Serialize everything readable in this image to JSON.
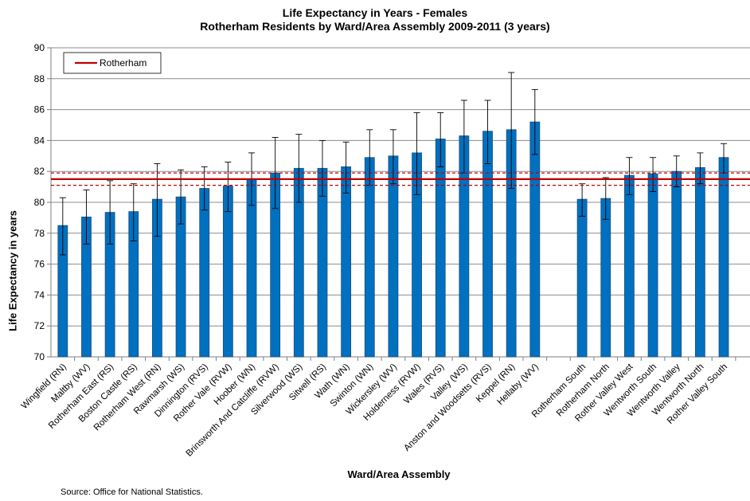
{
  "chart_data": {
    "type": "bar",
    "title": "Life Expectancy in Years - Females",
    "subtitle": "Rotherham Residents by Ward/Area Assembly 2009-2011 (3 years)",
    "xlabel": "Ward/Area Assembly",
    "ylabel": "Life Expectancy in years",
    "ylim": [
      70,
      90
    ],
    "yticks": [
      70,
      72,
      74,
      76,
      78,
      80,
      82,
      84,
      86,
      88,
      90
    ],
    "grid": true,
    "legend_position": "top-left",
    "bar_color": "#0070c0",
    "reference_color": "#c00000",
    "categories": [
      "Wingfield (RN)",
      "Maltby (WV)",
      "Rotherham East (RS)",
      "Boston Castle (RS)",
      "Rotherham West (RN)",
      "Rawmarsh (WS)",
      "Dinnington (RVS)",
      "Rother Vale (RVW)",
      "Hoober (WN)",
      "Brinsworth And Catcliffe (RVW)",
      "Silverwood (WS)",
      "Sitwell (RS)",
      "Wath (WN)",
      "Swinton (WN)",
      "Wickersley (WV)",
      "Holderness (RVW)",
      "Wales (RVS)",
      "Valley (WS)",
      "Anston and Woodsetts (RVS)",
      "Keppel (RN)",
      "Hellaby (WV)",
      "",
      "Rotherham South",
      "Rotherham North",
      "Rother Valley West",
      "Wentworth South",
      "Wentworth Valley",
      "Wentworth North",
      "Rother Valley South"
    ],
    "values": [
      78.5,
      79.05,
      79.35,
      79.4,
      80.2,
      80.35,
      80.9,
      81.05,
      81.5,
      81.9,
      82.2,
      82.2,
      82.3,
      82.9,
      83.0,
      83.2,
      84.1,
      84.3,
      84.6,
      84.7,
      85.2,
      null,
      80.2,
      80.25,
      81.75,
      81.85,
      82.0,
      82.25,
      82.9
    ],
    "error_low": [
      76.6,
      77.3,
      77.3,
      77.5,
      77.8,
      78.6,
      79.5,
      79.4,
      79.8,
      79.6,
      80.0,
      80.4,
      80.6,
      81.1,
      81.2,
      80.5,
      82.3,
      81.9,
      82.5,
      80.9,
      83.1,
      null,
      79.1,
      78.9,
      80.5,
      80.7,
      81.0,
      81.2,
      81.9
    ],
    "error_high": [
      80.3,
      80.8,
      81.4,
      81.2,
      82.5,
      82.1,
      82.3,
      82.6,
      83.2,
      84.2,
      84.4,
      84.0,
      83.9,
      84.7,
      84.7,
      85.8,
      85.8,
      86.6,
      86.6,
      88.4,
      87.3,
      null,
      81.2,
      81.6,
      82.9,
      82.9,
      83.0,
      83.2,
      83.8
    ],
    "reference": {
      "name": "Rotherham",
      "value": 81.5,
      "ci_low": 81.1,
      "ci_high": 81.9
    }
  },
  "footer": {
    "source": "Source: Office for National Statistics."
  }
}
